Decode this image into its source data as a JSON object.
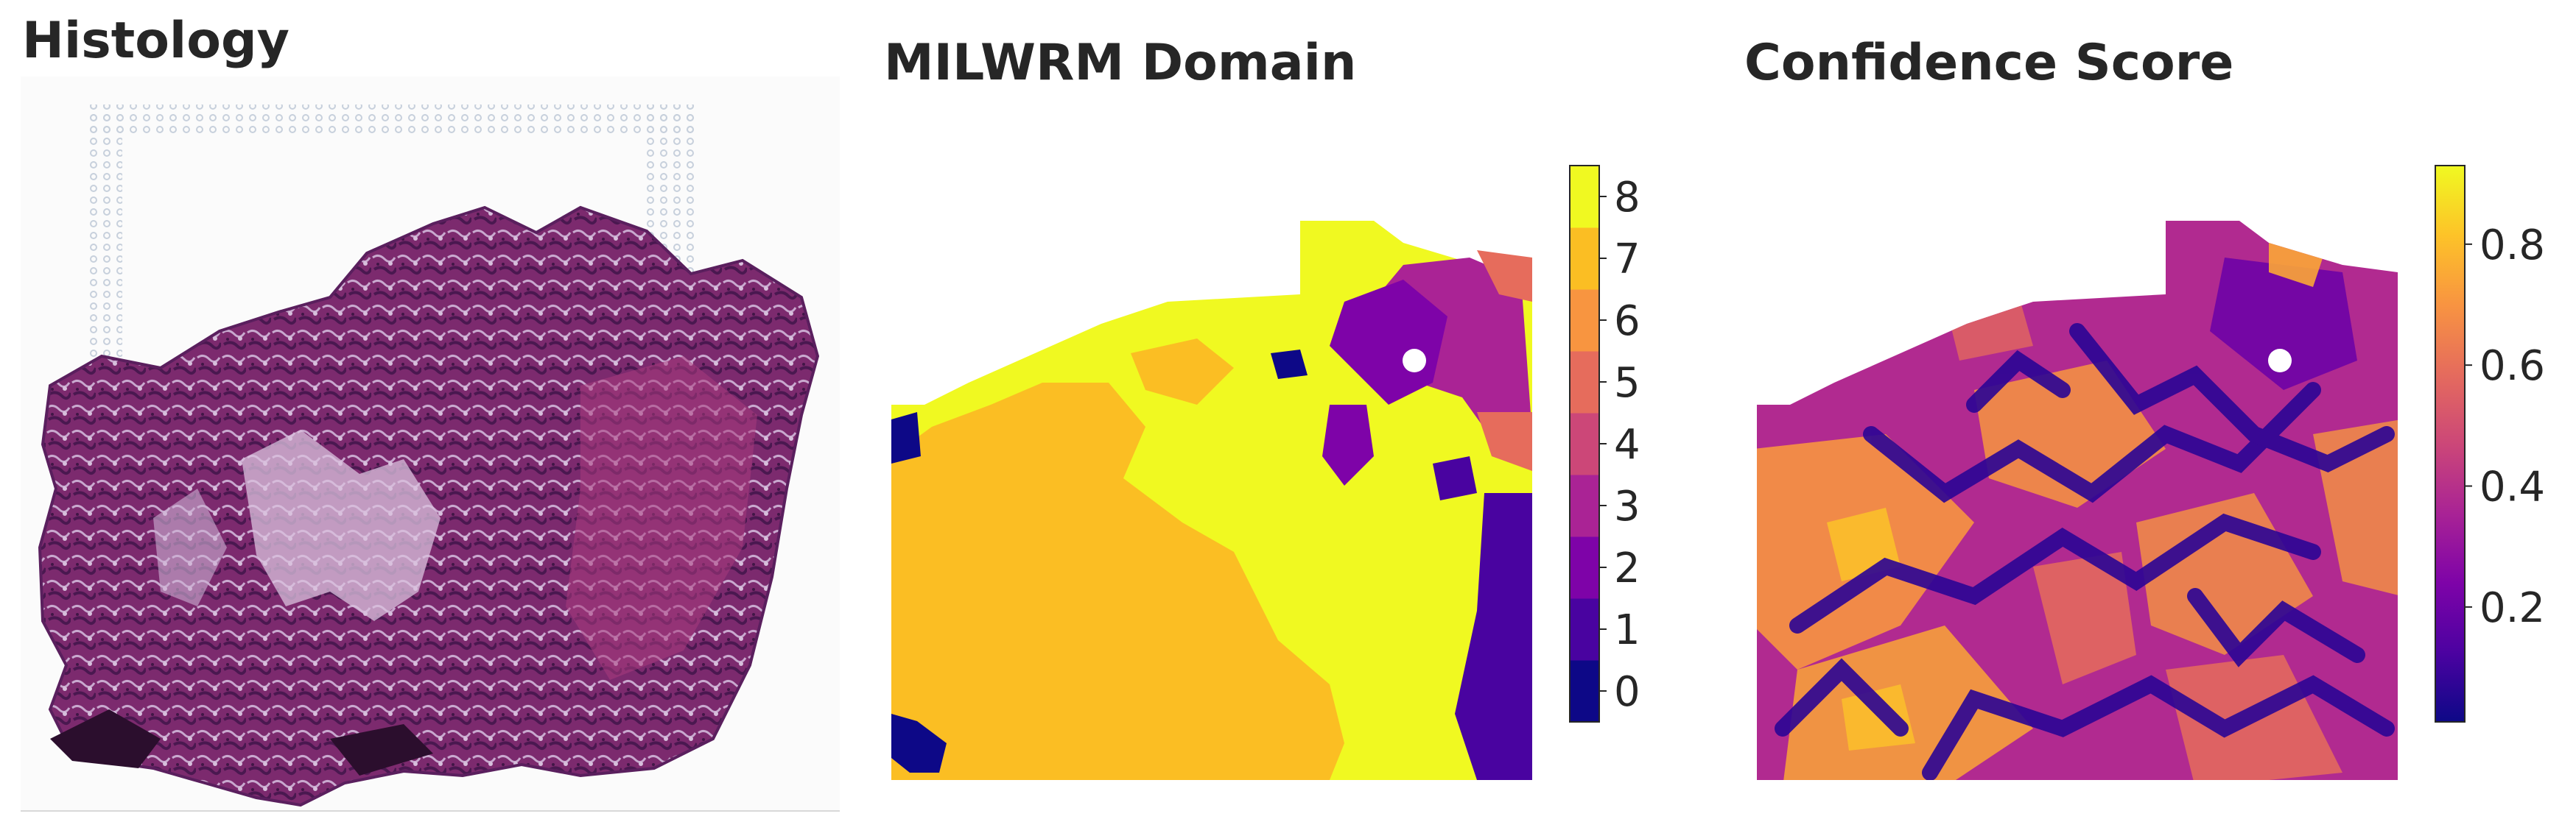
{
  "panels": {
    "histology": {
      "title": "Histology"
    },
    "domain": {
      "title": "MILWRM Domain",
      "colorbar": {
        "ticks": [
          "0",
          "1",
          "2",
          "3",
          "4",
          "5",
          "6",
          "7",
          "8"
        ],
        "colors": [
          "#0d0887",
          "#4903a0",
          "#7e03a8",
          "#aa2395",
          "#cc4778",
          "#e66c5c",
          "#f89540",
          "#fbbe23",
          "#f0f921"
        ]
      }
    },
    "confidence": {
      "title": "Confidence Score",
      "colorbar": {
        "ticks": [
          "0.2",
          "0.4",
          "0.6",
          "0.8"
        ],
        "tick_values": [
          0.2,
          0.4,
          0.6,
          0.8
        ],
        "range": [
          0.01,
          0.93
        ]
      }
    }
  },
  "colors": {
    "tissue_dark": "#5a1f5e",
    "tissue_mid": "#8a2f77",
    "tissue_light": "#c9a9cf",
    "fiducial": "#c7d0dc",
    "plasma_low": "#0d0887",
    "plasma_high": "#f0f921"
  },
  "chart_data": [
    {
      "type": "heatmap",
      "title": "MILWRM Domain",
      "legend": "colorbar right",
      "colorbar_categories": [
        0,
        1,
        2,
        3,
        4,
        5,
        6,
        7,
        8
      ],
      "dominant_domains": [
        7,
        8
      ],
      "grid": false
    },
    {
      "type": "heatmap",
      "title": "Confidence Score",
      "legend": "colorbar right",
      "colorbar_range": [
        0.01,
        0.93
      ],
      "colorbar_ticks": [
        0.2,
        0.4,
        0.6,
        0.8
      ],
      "grid": false
    }
  ]
}
